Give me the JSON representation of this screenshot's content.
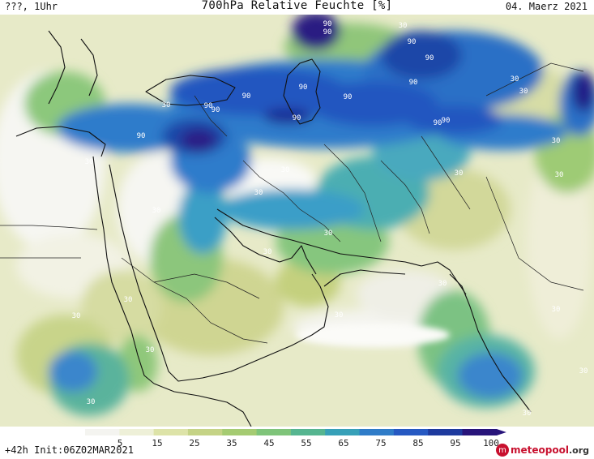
{
  "header": {
    "left": "???, 1Uhr",
    "title": "700hPa Relative Feuchte [%]",
    "date": "04. Maerz 2021"
  },
  "footer": {
    "left": "+42h  Init:06Z02MAR2021",
    "logo_text": "meteopool",
    "logo_suffix": ".org"
  },
  "colorbar": {
    "ticks": [
      "5",
      "15",
      "25",
      "35",
      "45",
      "55",
      "65",
      "75",
      "85",
      "95",
      "100"
    ],
    "colors": [
      "#f4f4f0",
      "#eef0d8",
      "#dde3a8",
      "#c5d386",
      "#a5cb72",
      "#7fc47a",
      "#56b590",
      "#37a0b8",
      "#2f7cc8",
      "#2659c2",
      "#1e3a9e",
      "#28147a"
    ]
  },
  "map": {
    "contour_labels": [
      {
        "text": "90"
      },
      {
        "text": "90"
      },
      {
        "text": "90"
      },
      {
        "text": "90"
      },
      {
        "text": "90"
      },
      {
        "text": "90"
      },
      {
        "text": "90"
      },
      {
        "text": "90"
      },
      {
        "text": "90"
      },
      {
        "text": "90"
      },
      {
        "text": "90"
      },
      {
        "text": "90"
      },
      {
        "text": "90"
      },
      {
        "text": "90"
      },
      {
        "text": "30"
      },
      {
        "text": "30"
      },
      {
        "text": "30"
      },
      {
        "text": "30"
      },
      {
        "text": "30"
      },
      {
        "text": "30"
      },
      {
        "text": "30"
      },
      {
        "text": "30"
      },
      {
        "text": "30"
      },
      {
        "text": "30"
      },
      {
        "text": "30"
      },
      {
        "text": "30"
      },
      {
        "text": "30"
      },
      {
        "text": "30"
      },
      {
        "text": "30"
      },
      {
        "text": "30"
      },
      {
        "text": "30"
      },
      {
        "text": "30"
      },
      {
        "text": "30"
      },
      {
        "text": "30"
      },
      {
        "text": "30"
      },
      {
        "text": "30"
      }
    ]
  }
}
